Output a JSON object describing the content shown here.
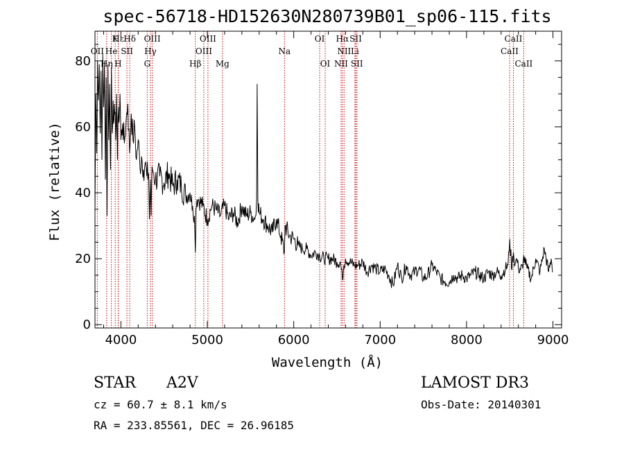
{
  "chart_data": {
    "type": "line",
    "title": "spec-56718-HD152630N280739B01_sp06-115.fits",
    "xlabel": "Wavelength (Å)",
    "ylabel": "Flux (relative)",
    "xlim": [
      3700,
      9100
    ],
    "ylim": [
      -1,
      89
    ],
    "xticks": [
      4000,
      5000,
      6000,
      7000,
      8000,
      9000
    ],
    "yticks": [
      0,
      20,
      40,
      60,
      80
    ],
    "series": [
      {
        "name": "flux",
        "x": [
          3700,
          3710,
          3720,
          3730,
          3740,
          3750,
          3760,
          3770,
          3780,
          3790,
          3800,
          3810,
          3820,
          3830,
          3840,
          3850,
          3860,
          3870,
          3880,
          3890,
          3900,
          3910,
          3920,
          3930,
          3940,
          3950,
          3960,
          3970,
          3980,
          3990,
          4000,
          4020,
          4040,
          4060,
          4080,
          4100,
          4120,
          4140,
          4160,
          4180,
          4200,
          4220,
          4240,
          4260,
          4280,
          4300,
          4320,
          4330,
          4340,
          4350,
          4360,
          4380,
          4400,
          4450,
          4500,
          4550,
          4600,
          4650,
          4700,
          4750,
          4800,
          4830,
          4850,
          4861,
          4870,
          4880,
          4900,
          4950,
          5000,
          5050,
          5100,
          5150,
          5200,
          5250,
          5300,
          5350,
          5400,
          5450,
          5500,
          5550,
          5570,
          5577,
          5585,
          5600,
          5650,
          5700,
          5750,
          5800,
          5850,
          5892,
          5900,
          5950,
          6000,
          6050,
          6100,
          6150,
          6200,
          6250,
          6300,
          6350,
          6400,
          6450,
          6500,
          6540,
          6563,
          6580,
          6600,
          6650,
          6700,
          6750,
          6800,
          6850,
          6900,
          6950,
          7000,
          7050,
          7100,
          7150,
          7200,
          7250,
          7300,
          7350,
          7400,
          7450,
          7500,
          7550,
          7600,
          7650,
          7700,
          7750,
          7800,
          7850,
          7900,
          7950,
          8000,
          8050,
          8100,
          8150,
          8200,
          8250,
          8300,
          8350,
          8400,
          8450,
          8480,
          8500,
          8520,
          8542,
          8560,
          8580,
          8600,
          8650,
          8662,
          8700,
          8750,
          8800,
          8850,
          8900,
          8950,
          8980,
          9000
        ],
        "values": [
          34,
          70,
          52,
          80,
          68,
          79,
          58,
          77,
          50,
          82,
          66,
          80,
          44,
          75,
          33,
          79,
          56,
          73,
          47,
          78,
          58,
          68,
          62,
          64,
          56,
          70,
          50,
          66,
          62,
          70,
          56,
          61,
          55,
          62,
          67,
          52,
          64,
          56,
          60,
          50,
          56,
          48,
          51,
          47,
          49,
          45,
          46,
          32,
          44,
          33,
          48,
          46,
          44,
          45,
          43,
          46,
          42,
          44,
          42,
          39,
          40,
          36,
          33,
          22,
          35,
          38,
          38,
          36,
          32,
          36,
          35,
          33,
          36,
          32,
          34,
          31,
          36,
          33,
          34,
          32,
          38,
          73,
          38,
          34,
          32,
          30,
          28,
          32,
          27,
          22,
          30,
          27,
          26,
          24,
          23,
          23,
          21,
          22,
          21,
          20,
          20,
          20,
          19,
          19,
          14,
          18,
          20,
          19,
          18,
          18,
          19,
          16,
          18,
          17,
          16,
          17,
          15,
          12,
          18,
          14,
          18,
          15,
          16,
          17,
          14,
          15,
          18,
          16,
          14,
          13,
          13,
          15,
          14,
          15,
          14,
          15,
          16,
          15,
          14,
          16,
          15,
          16,
          15,
          17,
          18,
          26,
          17,
          22,
          18,
          20,
          17,
          17,
          21,
          17,
          14,
          20,
          16,
          23,
          16,
          20,
          16
        ]
      }
    ],
    "line_markers": [
      {
        "label": "Hε",
        "x": 3970,
        "row": 0
      },
      {
        "label": "K",
        "x": 3934,
        "row": 0
      },
      {
        "label": "Hδ",
        "x": 4102,
        "row": 0
      },
      {
        "label": "OIII",
        "x": 4363,
        "row": 0
      },
      {
        "label": "OIII",
        "x": 5007,
        "row": 0
      },
      {
        "label": "OI",
        "x": 6300,
        "row": 0
      },
      {
        "label": "Hα",
        "x": 6563,
        "row": 0
      },
      {
        "label": "SII",
        "x": 6717,
        "row": 0
      },
      {
        "label": "CaII",
        "x": 8542,
        "row": 0
      },
      {
        "label": "OII",
        "x": 3727,
        "row": 1
      },
      {
        "label": "He",
        "x": 3889,
        "row": 1
      },
      {
        "label": "SII",
        "x": 4070,
        "row": 1
      },
      {
        "label": "Hγ",
        "x": 4341,
        "row": 1
      },
      {
        "label": "OIII",
        "x": 4959,
        "row": 1
      },
      {
        "label": "Na",
        "x": 5893,
        "row": 1
      },
      {
        "label": "NII",
        "x": 6583,
        "row": 1
      },
      {
        "label": "Li",
        "x": 6708,
        "row": 1
      },
      {
        "label": "CaII",
        "x": 8498,
        "row": 1
      },
      {
        "label": "Hη",
        "x": 3835,
        "row": 2
      },
      {
        "label": "H",
        "x": 3968,
        "row": 2
      },
      {
        "label": "G",
        "x": 4305,
        "row": 2
      },
      {
        "label": "Hβ",
        "x": 4861,
        "row": 2
      },
      {
        "label": "Mg",
        "x": 5175,
        "row": 2
      },
      {
        "label": "OI",
        "x": 6364,
        "row": 2
      },
      {
        "label": "NII",
        "x": 6548,
        "row": 2
      },
      {
        "label": "SII",
        "x": 6731,
        "row": 2
      },
      {
        "label": "CaII",
        "x": 8662,
        "row": 2
      }
    ],
    "marker_color": "#cc0000"
  },
  "info": {
    "object_type": "STAR",
    "subclass": "A2V",
    "survey": "LAMOST DR3",
    "cz": "cz = 60.7 ± 8.1 km/s",
    "obs_date": "Obs-Date: 20140301",
    "coords": "RA = 233.85561, DEC =  26.96185"
  }
}
